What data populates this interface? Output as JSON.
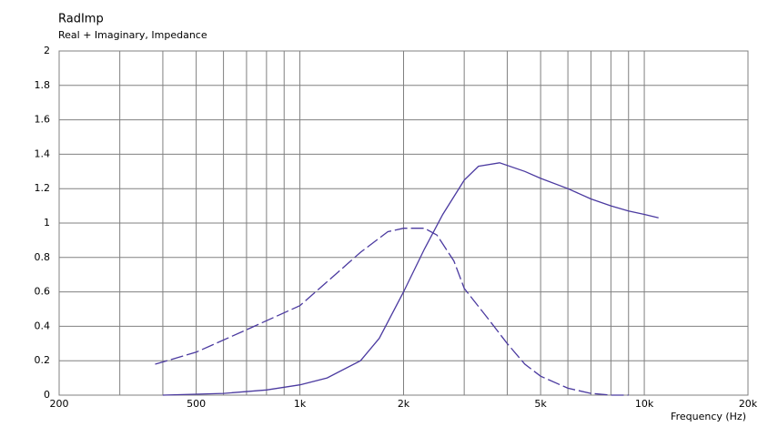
{
  "chart_data": {
    "type": "line",
    "title": "RadImp",
    "subtitle": "Real + Imaginary, Impedance",
    "x_label": "Frequency  (Hz)",
    "log_x": true,
    "grid": true,
    "xlim": [
      200,
      20000
    ],
    "xticks": [
      200,
      500,
      {
        "value": 1000,
        "label": "1k"
      },
      {
        "value": 2000,
        "label": "2k"
      },
      {
        "value": 5000,
        "label": "5k"
      },
      {
        "value": 10000,
        "label": "10k"
      },
      {
        "value": 20000,
        "label": "20k"
      }
    ],
    "xminor": [
      300,
      400,
      600,
      700,
      800,
      900,
      3000,
      4000,
      6000,
      7000,
      8000,
      9000
    ],
    "ylim": [
      0,
      2
    ],
    "yticks": [
      0,
      0.2,
      0.4,
      0.6,
      0.8,
      1,
      1.2,
      1.4,
      1.6,
      1.8,
      2
    ],
    "series": [
      {
        "color": "#4b3aa0",
        "dashed": false,
        "x": [
          400,
          600,
          800,
          1000,
          1200,
          1500,
          1700,
          2000,
          2300,
          2600,
          3000,
          3300,
          3800,
          4500,
          5000,
          6000,
          7000,
          8000,
          9000,
          10000,
          11000
        ],
        "values": [
          0,
          0.01,
          0.03,
          0.06,
          0.1,
          0.2,
          0.33,
          0.6,
          0.85,
          1.05,
          1.25,
          1.33,
          1.35,
          1.3,
          1.26,
          1.2,
          1.14,
          1.1,
          1.07,
          1.05,
          1.03
        ]
      },
      {
        "color": "#4b3aa0",
        "dashed": true,
        "x": [
          380,
          500,
          700,
          1000,
          1300,
          1500,
          1800,
          2000,
          2300,
          2500,
          2800,
          3000,
          3500,
          4000,
          4500,
          5000,
          6000,
          7000,
          8000,
          9000
        ],
        "values": [
          0.18,
          0.25,
          0.38,
          0.52,
          0.72,
          0.83,
          0.95,
          0.97,
          0.97,
          0.93,
          0.78,
          0.62,
          0.45,
          0.3,
          0.18,
          0.11,
          0.04,
          0.01,
          0,
          0
        ]
      }
    ]
  }
}
